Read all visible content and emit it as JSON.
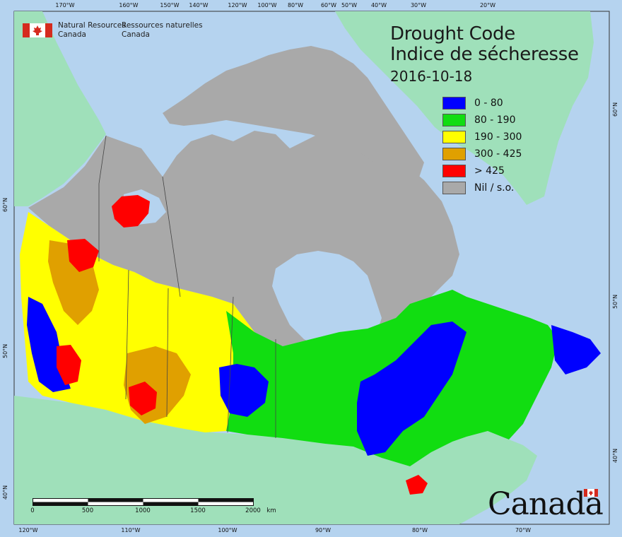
{
  "header": {
    "title_en": "Drought Code",
    "title_fr": "Indice de sécheresse",
    "date": "2016-10-18"
  },
  "agency": {
    "name_en_line1": "Natural Resources",
    "name_en_line2": "Canada",
    "name_fr_line1": "Ressources naturelles",
    "name_fr_line2": "Canada"
  },
  "legend": [
    {
      "label": "0 - 80",
      "color": "#0000ff"
    },
    {
      "label": "80 - 190",
      "color": "#11dd11"
    },
    {
      "label": "190 - 300",
      "color": "#ffff00"
    },
    {
      "label": "300 - 425",
      "color": "#e0a000"
    },
    {
      "label": "> 425",
      "color": "#ff0000"
    },
    {
      "label": "Nil / s.o.",
      "color": "#a9a9a9"
    }
  ],
  "graticule": {
    "top_labels": [
      "170°W",
      "160°W",
      "150°W",
      "140°W",
      "120°W",
      "100°W",
      "80°W",
      "60°W",
      "50°W",
      "40°W",
      "30°W",
      "20°W"
    ],
    "bottom_labels": [
      "120°W",
      "110°W",
      "100°W",
      "90°W",
      "80°W",
      "70°W"
    ],
    "left_labels": [
      "60°N",
      "50°N",
      "40°N"
    ],
    "right_labels": [
      "60°N",
      "50°N",
      "40°N"
    ]
  },
  "scalebar": {
    "ticks": [
      "0",
      "500",
      "1000",
      "1500",
      "2000"
    ],
    "unit": "km"
  },
  "wordmark": "Canada",
  "colors": {
    "ocean": "#b5d3ef",
    "foreign_land": "#9fe0ba",
    "nil_land": "#a9a9a9",
    "lake": "#b5d3ef"
  }
}
